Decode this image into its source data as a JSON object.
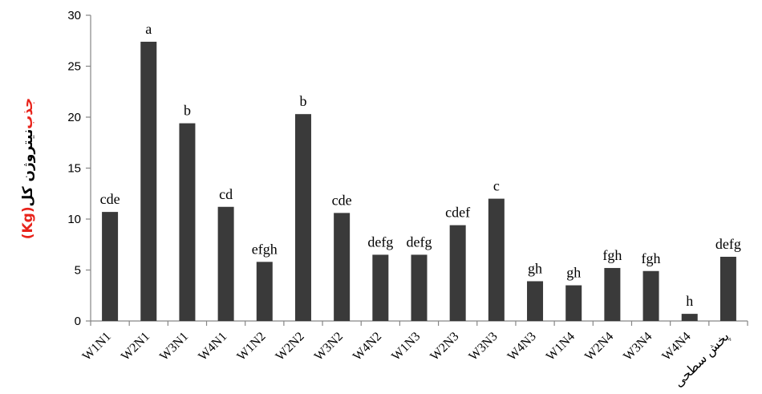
{
  "chart_data": {
    "type": "bar",
    "categories": [
      "W1N1",
      "W2N1",
      "W3N1",
      "W4N1",
      "W1N2",
      "W2N2",
      "W3N2",
      "W4N2",
      "W1N3",
      "W2N3",
      "W3N3",
      "W4N3",
      "W1N4",
      "W2N4",
      "W3N4",
      "W4N4",
      "پخش سطحی"
    ],
    "values": [
      10.7,
      27.4,
      19.4,
      11.2,
      5.8,
      20.3,
      10.6,
      6.5,
      6.5,
      9.4,
      12.0,
      3.9,
      3.5,
      5.2,
      4.9,
      0.7,
      6.3
    ],
    "bar_labels": [
      "cde",
      "a",
      "b",
      "cd",
      "efgh",
      "b",
      "cde",
      "defg",
      "defg",
      "cdef",
      "c",
      "gh",
      "gh",
      "fgh",
      "fgh",
      "h",
      "defg"
    ],
    "yticks": [
      "0",
      "5",
      "10",
      "15",
      "20",
      "25",
      "30"
    ],
    "ylim": [
      0,
      30
    ],
    "ylabel": {
      "part1": "جذب",
      "part2": "نیتروژن کل",
      "part3": "(Kg)"
    },
    "grid": false,
    "colors": {
      "bar": "#3a3a3a",
      "axis": "#868686",
      "ylabel_red": "#e8231b",
      "ylabel_black": "#000000"
    }
  }
}
